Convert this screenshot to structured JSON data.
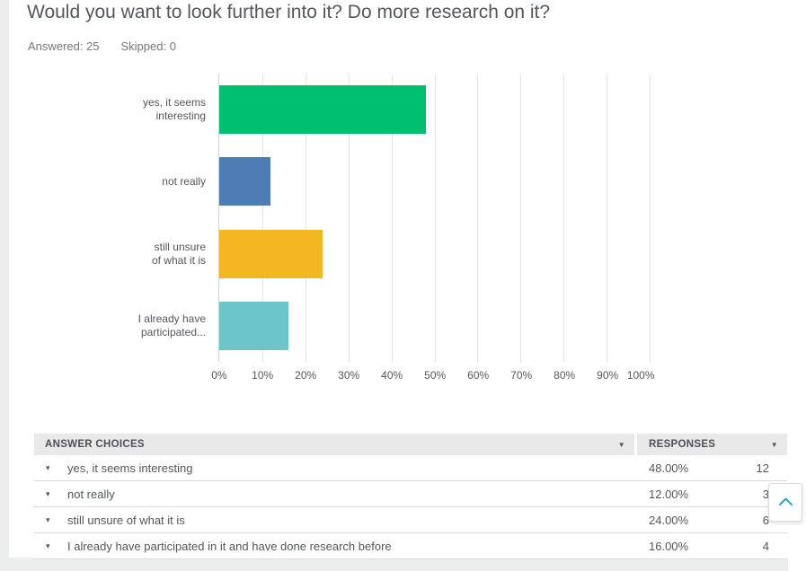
{
  "page": {
    "title": "Would you want to look further into it? Do more research on it?",
    "answered": "Answered: 25",
    "skipped": "Skipped: 0"
  },
  "chart_data": {
    "type": "bar",
    "orientation": "horizontal",
    "title": "",
    "categories": [
      "yes, it seems interesting",
      "not really",
      "still unsure of what it is",
      "I already have participated in it and have done research before"
    ],
    "category_display": [
      [
        "yes, it seems",
        "interesting"
      ],
      [
        "not really"
      ],
      [
        "still unsure",
        "of what it is"
      ],
      [
        "I already have",
        "participated..."
      ]
    ],
    "values": [
      48,
      12,
      24,
      16
    ],
    "value_unit": "percent",
    "xlim": [
      0,
      100
    ],
    "xticks": [
      "0%",
      "10%",
      "20%",
      "30%",
      "40%",
      "50%",
      "60%",
      "70%",
      "80%",
      "90%",
      "100%"
    ],
    "grid": true,
    "legend": false,
    "bar_colors": [
      "#00BF6F",
      "#507CB6",
      "#F5B623",
      "#6BC5C9"
    ]
  },
  "table": {
    "headers": [
      {
        "label": "ANSWER CHOICES"
      },
      {
        "label": "RESPONSES"
      }
    ],
    "rows": [
      {
        "choice": "yes, it seems interesting",
        "percent": "48.00%",
        "count": "12"
      },
      {
        "choice": "not really",
        "percent": "12.00%",
        "count": "3"
      },
      {
        "choice": "still unsure of what it is",
        "percent": "24.00%",
        "count": "6"
      },
      {
        "choice": "I already have participated in it and have done research before",
        "percent": "16.00%",
        "count": "4"
      }
    ]
  },
  "icons": {
    "header_caret": "▼",
    "row_caret": "▾"
  },
  "colors": {
    "scroll_chevron": "#35A3B4",
    "table_header_bg": "#E9E9EA",
    "page_bg": "#ECEDED"
  }
}
